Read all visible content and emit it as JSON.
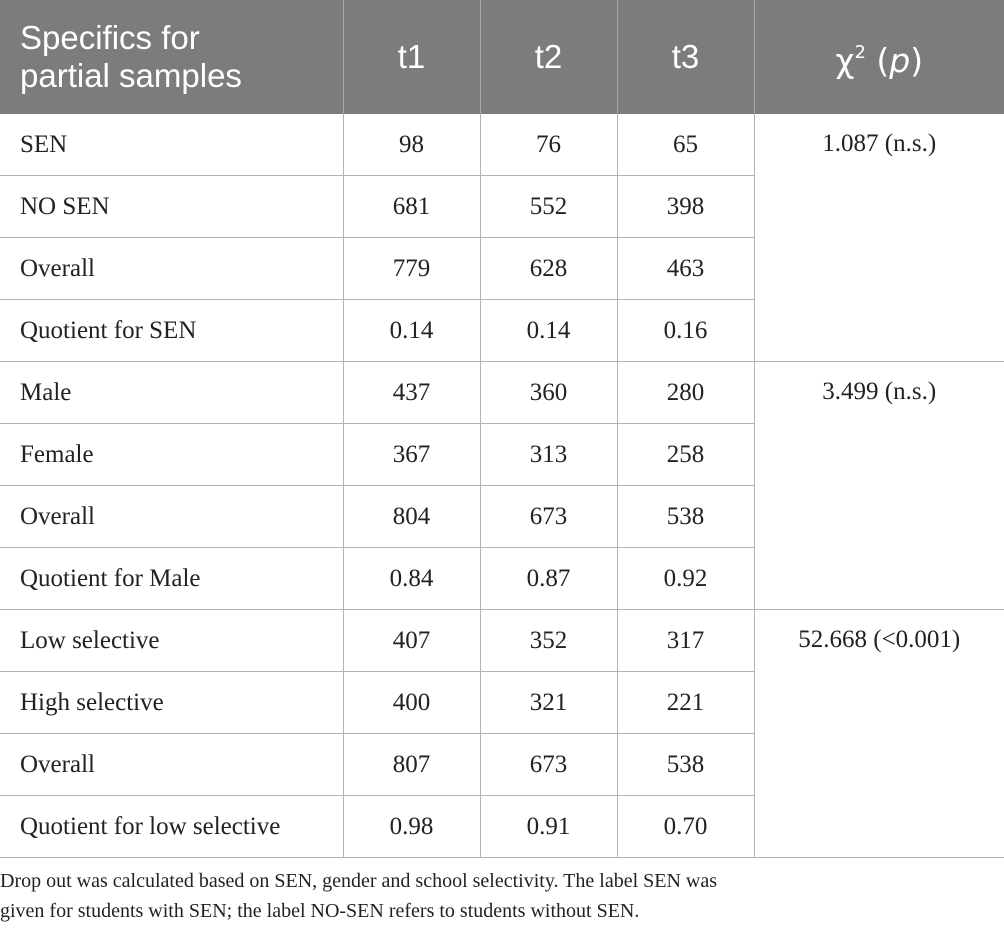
{
  "table": {
    "header": {
      "label_line1": "Specifics for",
      "label_line2": "partial samples",
      "t1": "t1",
      "t2": "t2",
      "t3": "t3",
      "chi_symbol": "χ",
      "chi_exp": "2",
      "chi_p": "p"
    },
    "groups": [
      {
        "chi": "1.087 (n.s.)",
        "rows": [
          {
            "label": "SEN",
            "t1": "98",
            "t2": "76",
            "t3": "65"
          },
          {
            "label": "NO SEN",
            "t1": "681",
            "t2": "552",
            "t3": "398"
          },
          {
            "label": "Overall",
            "t1": "779",
            "t2": "628",
            "t3": "463"
          },
          {
            "label": "Quotient for SEN",
            "t1": "0.14",
            "t2": "0.14",
            "t3": "0.16"
          }
        ]
      },
      {
        "chi": "3.499 (n.s.)",
        "rows": [
          {
            "label": "Male",
            "t1": "437",
            "t2": "360",
            "t3": "280"
          },
          {
            "label": "Female",
            "t1": "367",
            "t2": "313",
            "t3": "258"
          },
          {
            "label": "Overall",
            "t1": "804",
            "t2": "673",
            "t3": "538"
          },
          {
            "label": "Quotient for Male",
            "t1": "0.84",
            "t2": "0.87",
            "t3": "0.92"
          }
        ]
      },
      {
        "chi": "52.668 (<0.001)",
        "rows": [
          {
            "label": "Low selective",
            "t1": "407",
            "t2": "352",
            "t3": "317"
          },
          {
            "label": "High selective",
            "t1": "400",
            "t2": "321",
            "t3": "221"
          },
          {
            "label": "Overall",
            "t1": "807",
            "t2": "673",
            "t3": "538"
          },
          {
            "label": "Quotient for low selective",
            "t1": "0.98",
            "t2": "0.91",
            "t3": "0.70"
          }
        ]
      }
    ]
  },
  "note": {
    "line1": "Drop out was calculated based on SEN, gender and school selectivity. The label SEN was",
    "line2": "given for students with SEN; the label NO-SEN refers to students without SEN."
  }
}
